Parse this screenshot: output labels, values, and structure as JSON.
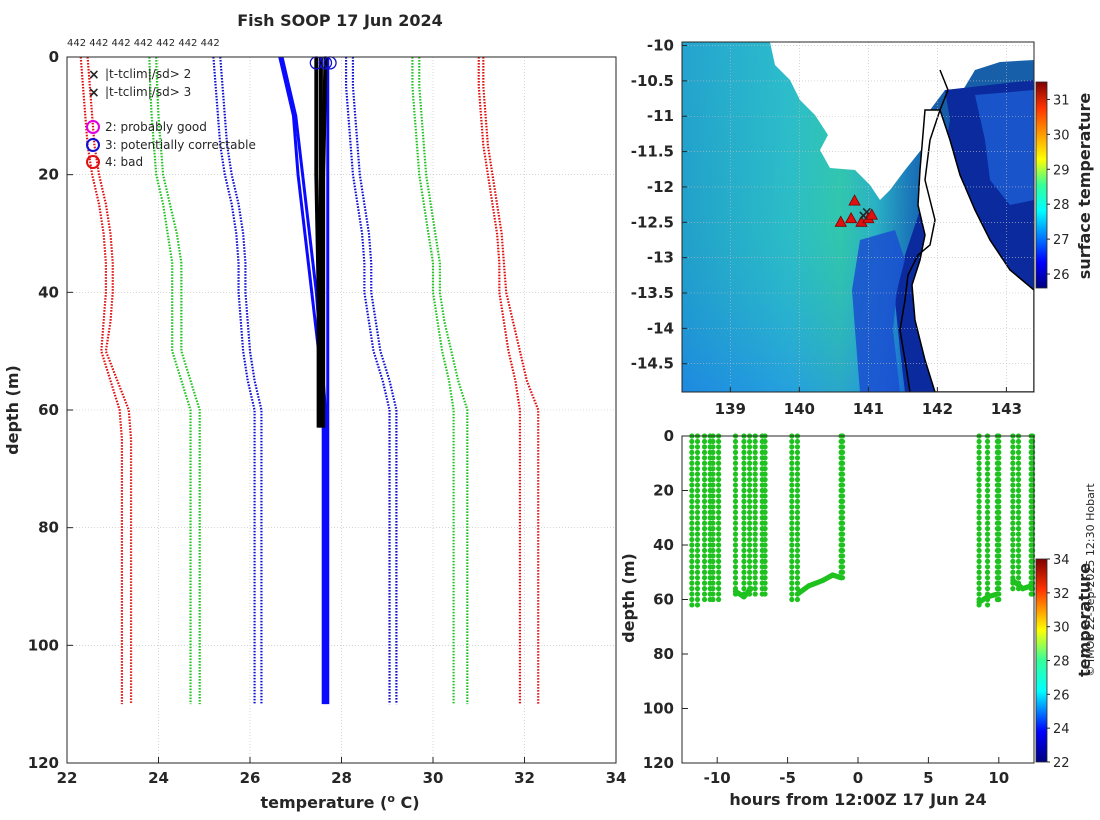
{
  "figure": {
    "title": "Fish SOOP 17 Jun 2024",
    "counts_label": "442 442 442 442 442 442 442",
    "credit": "© IMOS 22-Sep-2025 12:30 Hobart"
  },
  "chart_data": [
    {
      "type": "line",
      "name": "temperature-profiles",
      "xlabel": "temperature (°C)",
      "ylabel": "depth (m)",
      "xlim": [
        22,
        34
      ],
      "ylim": [
        0,
        120
      ],
      "x_ticks": [
        "22",
        "24",
        "26",
        "28",
        "30",
        "32",
        "34"
      ],
      "y_ticks": [
        "0",
        "20",
        "40",
        "60",
        "80",
        "100",
        "120"
      ],
      "grid": true,
      "legend_position": "top-left",
      "legend": [
        {
          "label": "|t-tclim|/sd> 2",
          "marker": "x",
          "color": "#22c322"
        },
        {
          "label": "|t-tclim|/sd> 3",
          "marker": "x",
          "color": "#e01010"
        },
        {
          "label": "2: probably good",
          "marker": "o",
          "color": "#e000e0"
        },
        {
          "label": "3: potentially correctable",
          "marker": "o",
          "color": "#1010d0"
        },
        {
          "label": "4: bad",
          "marker": "o",
          "color": "#e01010"
        }
      ],
      "depth_levels": [
        0,
        5,
        10,
        15,
        20,
        25,
        30,
        35,
        40,
        45,
        50,
        55,
        60,
        65,
        70,
        80,
        90,
        100,
        110
      ],
      "climatology_series": [
        {
          "name": "clim-3sd-low-a",
          "color": "#e01010",
          "values": [
            22.3,
            22.35,
            22.4,
            22.45,
            22.55,
            22.7,
            22.8,
            22.85,
            22.85,
            22.8,
            22.75,
            22.95,
            23.15,
            23.2,
            23.2,
            23.2,
            23.2,
            23.2,
            23.2
          ]
        },
        {
          "name": "clim-3sd-low-b",
          "color": "#e01010",
          "values": [
            22.45,
            22.5,
            22.55,
            22.6,
            22.7,
            22.85,
            22.95,
            23.0,
            23.0,
            22.95,
            22.85,
            23.1,
            23.35,
            23.4,
            23.4,
            23.4,
            23.4,
            23.4,
            23.4
          ]
        },
        {
          "name": "clim-2sd-low-a",
          "color": "#22c322",
          "values": [
            23.8,
            23.82,
            23.85,
            23.9,
            23.95,
            24.1,
            24.2,
            24.3,
            24.3,
            24.3,
            24.3,
            24.5,
            24.7,
            24.7,
            24.7,
            24.7,
            24.7,
            24.7,
            24.7
          ]
        },
        {
          "name": "clim-2sd-low-b",
          "color": "#22c322",
          "values": [
            23.95,
            23.97,
            24.0,
            24.05,
            24.1,
            24.25,
            24.4,
            24.5,
            24.5,
            24.5,
            24.5,
            24.7,
            24.9,
            24.9,
            24.9,
            24.9,
            24.9,
            24.9,
            24.9
          ]
        },
        {
          "name": "clim-1sd-low-a",
          "color": "#1010d0",
          "values": [
            25.2,
            25.25,
            25.3,
            25.35,
            25.45,
            25.6,
            25.7,
            25.75,
            25.75,
            25.8,
            25.85,
            25.95,
            26.1,
            26.1,
            26.1,
            26.1,
            26.1,
            26.1,
            26.1
          ]
        },
        {
          "name": "clim-1sd-low-b",
          "color": "#1010d0",
          "values": [
            25.35,
            25.4,
            25.45,
            25.5,
            25.6,
            25.75,
            25.85,
            25.9,
            25.9,
            25.95,
            26.0,
            26.1,
            26.25,
            26.25,
            26.25,
            26.25,
            26.25,
            26.25,
            26.25
          ]
        },
        {
          "name": "clim-1sd-high-a",
          "color": "#1010d0",
          "values": [
            28.1,
            28.1,
            28.15,
            28.2,
            28.25,
            28.35,
            28.45,
            28.5,
            28.5,
            28.6,
            28.7,
            28.9,
            29.05,
            29.05,
            29.05,
            29.05,
            29.05,
            29.05,
            29.05
          ]
        },
        {
          "name": "clim-1sd-high-b",
          "color": "#1010d0",
          "values": [
            28.25,
            28.25,
            28.3,
            28.35,
            28.4,
            28.5,
            28.6,
            28.65,
            28.65,
            28.75,
            28.85,
            29.05,
            29.2,
            29.2,
            29.2,
            29.2,
            29.2,
            29.2,
            29.2
          ]
        },
        {
          "name": "clim-2sd-high-a",
          "color": "#22c322",
          "values": [
            29.55,
            29.55,
            29.6,
            29.65,
            29.7,
            29.8,
            29.9,
            30.0,
            30.0,
            30.1,
            30.2,
            30.35,
            30.45,
            30.45,
            30.45,
            30.45,
            30.45,
            30.45,
            30.45
          ]
        },
        {
          "name": "clim-2sd-high-b",
          "color": "#22c322",
          "values": [
            29.7,
            29.7,
            29.75,
            29.8,
            29.85,
            29.95,
            30.05,
            30.15,
            30.15,
            30.25,
            30.4,
            30.55,
            30.75,
            30.75,
            30.75,
            30.75,
            30.75,
            30.75,
            30.75
          ]
        },
        {
          "name": "clim-3sd-high-a",
          "color": "#e01010",
          "values": [
            31.0,
            31.0,
            31.05,
            31.1,
            31.2,
            31.3,
            31.4,
            31.45,
            31.45,
            31.55,
            31.65,
            31.8,
            31.9,
            31.9,
            31.9,
            31.9,
            31.9,
            31.9,
            31.9
          ]
        },
        {
          "name": "clim-3sd-high-b",
          "color": "#e01010",
          "values": [
            31.1,
            31.1,
            31.15,
            31.2,
            31.3,
            31.4,
            31.5,
            31.55,
            31.6,
            31.75,
            31.9,
            32.05,
            32.3,
            32.3,
            32.3,
            32.3,
            32.3,
            32.3,
            32.3
          ]
        }
      ],
      "profile_series": [
        {
          "name": "blue-profile-1",
          "color": "#0a0aff",
          "depths": [
            0,
            5,
            10,
            20,
            30,
            40,
            50,
            60,
            70,
            80,
            90,
            100,
            110
          ],
          "values": [
            26.65,
            26.8,
            26.95,
            27.05,
            27.2,
            27.35,
            27.5,
            27.6,
            27.6,
            27.6,
            27.6,
            27.6,
            27.6
          ]
        },
        {
          "name": "blue-profile-2",
          "color": "#0a0aff",
          "depths": [
            0,
            5,
            10,
            20,
            30,
            40,
            50,
            60,
            70,
            80,
            90,
            100,
            110
          ],
          "values": [
            26.7,
            26.85,
            27.0,
            27.15,
            27.3,
            27.45,
            27.55,
            27.65,
            27.65,
            27.65,
            27.65,
            27.65,
            27.65
          ]
        },
        {
          "name": "blue-profile-3",
          "color": "#0a0aff",
          "depths": [
            0,
            60,
            110
          ],
          "values": [
            27.7,
            27.7,
            27.7
          ]
        },
        {
          "name": "black-profile-1",
          "color": "#000000",
          "depths": [
            0,
            20,
            40,
            60,
            63
          ],
          "values": [
            27.45,
            27.45,
            27.5,
            27.5,
            27.5
          ]
        },
        {
          "name": "black-profile-2",
          "color": "#000000",
          "depths": [
            0,
            20,
            40,
            60,
            63
          ],
          "values": [
            27.55,
            27.55,
            27.55,
            27.55,
            27.55
          ]
        },
        {
          "name": "black-profile-3",
          "color": "#000000",
          "depths": [
            0,
            20,
            40,
            60,
            63
          ],
          "values": [
            27.65,
            27.6,
            27.6,
            27.6,
            27.6
          ]
        }
      ],
      "flag_circles": [
        {
          "temp": 27.45,
          "depth": 1,
          "color": "#1010d0"
        },
        {
          "temp": 27.65,
          "depth": 1,
          "color": "#1010d0"
        },
        {
          "temp": 27.75,
          "depth": 1,
          "color": "#1010d0"
        }
      ]
    },
    {
      "type": "heatmap",
      "name": "surface-temperature-map",
      "xlim": [
        138.3,
        143.4
      ],
      "ylim": [
        -14.9,
        -9.95
      ],
      "x_ticks": [
        "139",
        "140",
        "141",
        "142",
        "143"
      ],
      "y_ticks": [
        "-10",
        "-10.5",
        "-11",
        "-11.5",
        "-12",
        "-12.5",
        "-13",
        "-13.5",
        "-14",
        "-14.5"
      ],
      "colorbar_label": "surface temperature",
      "colorbar_range": [
        25.6,
        31.5
      ],
      "colorbar_ticks": [
        "26",
        "27",
        "28",
        "29",
        "30",
        "31"
      ],
      "drops": [
        {
          "lon": 140.8,
          "lat": -12.2,
          "marker": "triangle",
          "color": "#e01010"
        },
        {
          "lon": 140.95,
          "lat": -12.35,
          "marker": "x",
          "color": "#22c322"
        },
        {
          "lon": 140.6,
          "lat": -12.5,
          "marker": "triangle",
          "color": "#e01010"
        },
        {
          "lon": 140.75,
          "lat": -12.45,
          "marker": "triangle",
          "color": "#e01010"
        },
        {
          "lon": 140.9,
          "lat": -12.5,
          "marker": "triangle",
          "color": "#e01010"
        },
        {
          "lon": 141.0,
          "lat": -12.45,
          "marker": "triangle",
          "color": "#e01010"
        },
        {
          "lon": 141.05,
          "lat": -12.4,
          "marker": "triangle",
          "color": "#e01010"
        },
        {
          "lon": 140.9,
          "lat": -12.4,
          "marker": "x",
          "color": "#22c322"
        }
      ]
    },
    {
      "type": "scatter",
      "name": "depth-time-section",
      "xlabel": "hours from 12:00Z 17 Jun 24",
      "ylabel": "depth (m)",
      "xlim": [
        -12.5,
        12.5
      ],
      "ylim": [
        0,
        120
      ],
      "x_ticks": [
        "-10",
        "-5",
        "0",
        "5",
        "10"
      ],
      "y_ticks": [
        "0",
        "20",
        "40",
        "60",
        "80",
        "100",
        "120"
      ],
      "colorbar_label": "temperature",
      "colorbar_range": [
        22,
        34
      ],
      "colorbar_ticks": [
        "22",
        "24",
        "26",
        "28",
        "30",
        "32",
        "34"
      ],
      "point_color": "#1ec21e",
      "casts": [
        {
          "t0": -11.8,
          "t1": -11.4,
          "max_depth": 62
        },
        {
          "t0": -10.9,
          "t1": -10.5,
          "max_depth": 61
        },
        {
          "t0": -10.3,
          "t1": -9.9,
          "max_depth": 60
        },
        {
          "t0": -8.7,
          "t1": -8.1,
          "max_depth": 58
        },
        {
          "t0": -7.7,
          "t1": -7.3,
          "max_depth": 59
        },
        {
          "t0": -6.8,
          "t1": -6.6,
          "max_depth": 58
        },
        {
          "t0": -4.7,
          "t1": -4.3,
          "max_depth": 61
        },
        {
          "t0": -1.2,
          "t1": -1.1,
          "max_depth": 53
        },
        {
          "t0": 8.6,
          "t1": 9.2,
          "max_depth": 62
        },
        {
          "t0": 9.9,
          "t1": 10.0,
          "max_depth": 60
        },
        {
          "t0": 11.0,
          "t1": 11.4,
          "max_depth": 57
        },
        {
          "t0": 12.3,
          "t1": 12.4,
          "max_depth": 58
        }
      ],
      "bottom_segments": [
        {
          "t": [
            -8.7,
            -8.1,
            -7.6
          ],
          "d": [
            57,
            59,
            56
          ]
        },
        {
          "t": [
            -4.3,
            -3.5,
            -2.5,
            -1.8,
            -1.2
          ],
          "d": [
            58,
            55,
            53,
            51,
            52
          ]
        },
        {
          "t": [
            8.6,
            9.2,
            9.9
          ],
          "d": [
            61,
            59,
            58
          ]
        },
        {
          "t": [
            11.0,
            11.7,
            12.3
          ],
          "d": [
            53,
            56,
            55
          ]
        }
      ]
    }
  ]
}
